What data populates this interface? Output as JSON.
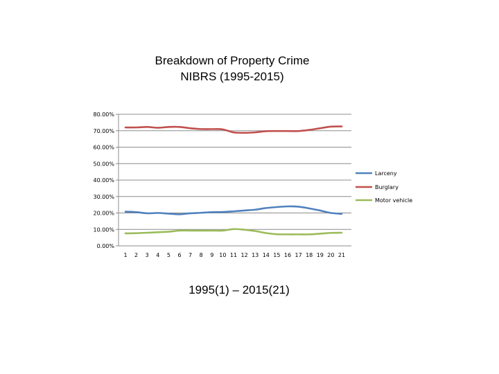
{
  "slide": {
    "title_line1": "Breakdown of Property Crime",
    "title_line2": "NIBRS (1995-2015)",
    "caption": "1995(1) – 2015(21)"
  },
  "chart_data": {
    "type": "line",
    "title": "",
    "xlabel": "",
    "ylabel": "",
    "x": [
      1,
      2,
      3,
      4,
      5,
      6,
      7,
      8,
      9,
      10,
      11,
      12,
      13,
      14,
      15,
      16,
      17,
      18,
      19,
      20,
      21
    ],
    "x_tick_labels": [
      "1",
      "2",
      "3",
      "4",
      "5",
      "6",
      "7",
      "8",
      "9",
      "10",
      "11",
      "12",
      "13",
      "14",
      "15",
      "16",
      "17",
      "18",
      "19",
      "20",
      "21"
    ],
    "y_tick_values": [
      0,
      10,
      20,
      30,
      40,
      50,
      60,
      70,
      80
    ],
    "y_tick_labels": [
      "0.00%",
      "10.00%",
      "20.00%",
      "30.00%",
      "40.00%",
      "50.00%",
      "60.00%",
      "70.00%",
      "80.00%"
    ],
    "ylim": [
      0,
      80
    ],
    "grid": true,
    "legend_position": "right",
    "series": [
      {
        "name": "Larceny",
        "color": "#4f81bd",
        "values": [
          20.8,
          20.5,
          19.8,
          20.0,
          19.6,
          19.2,
          19.8,
          20.1,
          20.5,
          20.6,
          21.0,
          21.5,
          22.0,
          23.0,
          23.6,
          24.0,
          23.8,
          22.8,
          21.5,
          20.0,
          19.5
        ]
      },
      {
        "name": "Burglary",
        "color": "#c0504d",
        "values": [
          72.0,
          72.0,
          72.3,
          71.8,
          72.3,
          72.3,
          71.5,
          71.0,
          71.0,
          70.8,
          69.0,
          68.7,
          69.0,
          69.7,
          69.8,
          69.8,
          69.8,
          70.5,
          71.5,
          72.5,
          72.6
        ]
      },
      {
        "name": "Motor vehicle",
        "color": "#9bbb59",
        "values": [
          7.6,
          7.7,
          8.0,
          8.3,
          8.6,
          9.3,
          9.3,
          9.3,
          9.3,
          9.3,
          10.2,
          9.8,
          9.0,
          7.8,
          7.1,
          7.0,
          7.0,
          7.0,
          7.4,
          7.9,
          8.0
        ]
      }
    ]
  }
}
